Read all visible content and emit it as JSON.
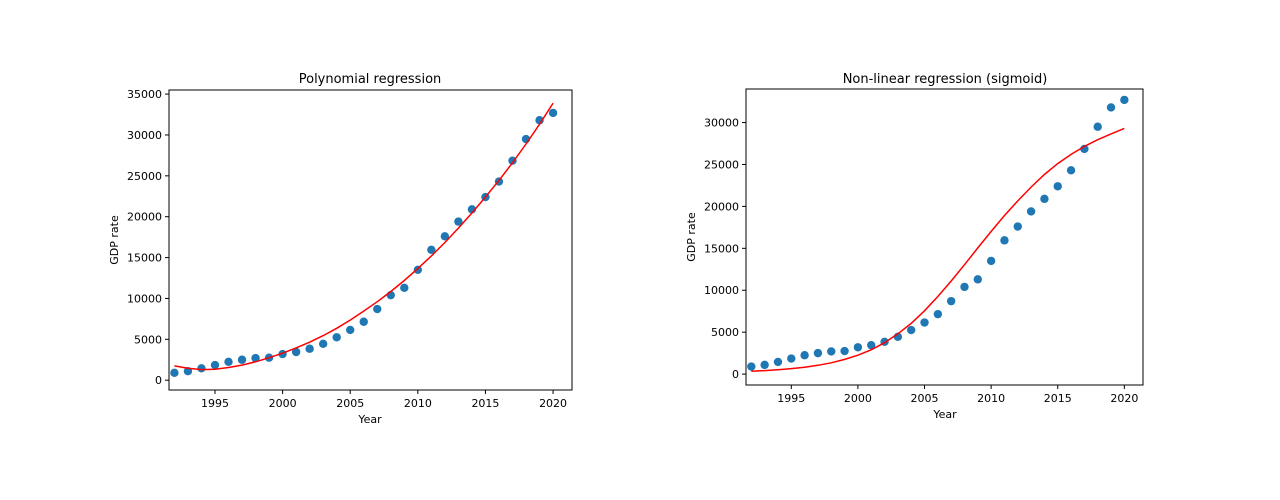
{
  "chart_data": [
    {
      "type": "scatter",
      "title": "Polynomial regression",
      "xlabel": "Year",
      "ylabel": "GDP rate",
      "xlim": [
        1991.6,
        2021.4
      ],
      "ylim": [
        -1200,
        35500
      ],
      "xticks": [
        1995,
        2000,
        2005,
        2010,
        2015,
        2020
      ],
      "xtick_labels": [
        "1995",
        "2000",
        "2005",
        "2010",
        "2015",
        "2020"
      ],
      "yticks": [
        0,
        5000,
        10000,
        15000,
        20000,
        25000,
        30000,
        35000
      ],
      "ytick_labels": [
        "0",
        "5000",
        "10000",
        "15000",
        "20000",
        "25000",
        "30000",
        "35000"
      ],
      "grid": false,
      "series": [
        {
          "kind": "points",
          "color": "#1f77b4",
          "x": [
            1992,
            1993,
            1994,
            1995,
            1996,
            1997,
            1998,
            1999,
            2000,
            2001,
            2002,
            2003,
            2004,
            2005,
            2006,
            2007,
            2008,
            2009,
            2010,
            2011,
            2012,
            2013,
            2014,
            2015,
            2016,
            2017,
            2018,
            2019,
            2020
          ],
          "y": [
            900,
            1100,
            1450,
            1850,
            2250,
            2500,
            2700,
            2750,
            3200,
            3450,
            3850,
            4450,
            5250,
            6150,
            7150,
            8700,
            10400,
            11300,
            13500,
            15950,
            17600,
            19400,
            20900,
            22400,
            24300,
            26850,
            29500,
            31800,
            32700
          ]
        },
        {
          "kind": "line",
          "color": "#ff0000",
          "x": [
            1992,
            1993,
            1994,
            1995,
            1996,
            1997,
            1998,
            1999,
            2000,
            2001,
            2002,
            2003,
            2004,
            2005,
            2006,
            2007,
            2008,
            2009,
            2010,
            2011,
            2012,
            2013,
            2014,
            2015,
            2016,
            2017,
            2018,
            2019,
            2020
          ],
          "y": [
            1750,
            1450,
            1300,
            1350,
            1550,
            1850,
            2250,
            2750,
            3300,
            3950,
            4650,
            5450,
            6350,
            7350,
            8450,
            9600,
            10850,
            12200,
            13650,
            15200,
            16850,
            18600,
            20450,
            22400,
            24450,
            26600,
            28900,
            31300,
            33900
          ]
        }
      ]
    },
    {
      "type": "scatter",
      "title": "Non-linear regression (sigmoid)",
      "xlabel": "Year",
      "ylabel": "GDP rate",
      "xlim": [
        1991.6,
        2021.4
      ],
      "ylim": [
        -1300,
        34000
      ],
      "xticks": [
        1995,
        2000,
        2005,
        2010,
        2015,
        2020
      ],
      "xtick_labels": [
        "1995",
        "2000",
        "2005",
        "2010",
        "2015",
        "2020"
      ],
      "yticks": [
        0,
        5000,
        10000,
        15000,
        20000,
        25000,
        30000
      ],
      "ytick_labels": [
        "0",
        "5000",
        "10000",
        "15000",
        "20000",
        "25000",
        "30000"
      ],
      "grid": false,
      "series": [
        {
          "kind": "points",
          "color": "#1f77b4",
          "x": [
            1992,
            1993,
            1994,
            1995,
            1996,
            1997,
            1998,
            1999,
            2000,
            2001,
            2002,
            2003,
            2004,
            2005,
            2006,
            2007,
            2008,
            2009,
            2010,
            2011,
            2012,
            2013,
            2014,
            2015,
            2016,
            2017,
            2018,
            2019,
            2020
          ],
          "y": [
            900,
            1100,
            1450,
            1850,
            2250,
            2500,
            2700,
            2750,
            3200,
            3450,
            3850,
            4450,
            5250,
            6150,
            7150,
            8700,
            10400,
            11300,
            13500,
            15950,
            17600,
            19400,
            20900,
            22400,
            24300,
            26850,
            29500,
            31800,
            32700
          ]
        },
        {
          "kind": "line",
          "color": "#ff0000",
          "x": [
            1992,
            1993,
            1994,
            1995,
            1996,
            1997,
            1998,
            1999,
            2000,
            2001,
            2002,
            2003,
            2004,
            2005,
            2006,
            2007,
            2008,
            2009,
            2010,
            2011,
            2012,
            2013,
            2014,
            2015,
            2016,
            2017,
            2018,
            2019,
            2020
          ],
          "y": [
            350,
            420,
            520,
            650,
            820,
            1050,
            1350,
            1750,
            2250,
            2900,
            3750,
            4800,
            6050,
            7550,
            9250,
            11100,
            13050,
            15050,
            17000,
            18900,
            20650,
            22300,
            23800,
            25100,
            26200,
            27150,
            27950,
            28650,
            29300
          ]
        }
      ]
    }
  ]
}
